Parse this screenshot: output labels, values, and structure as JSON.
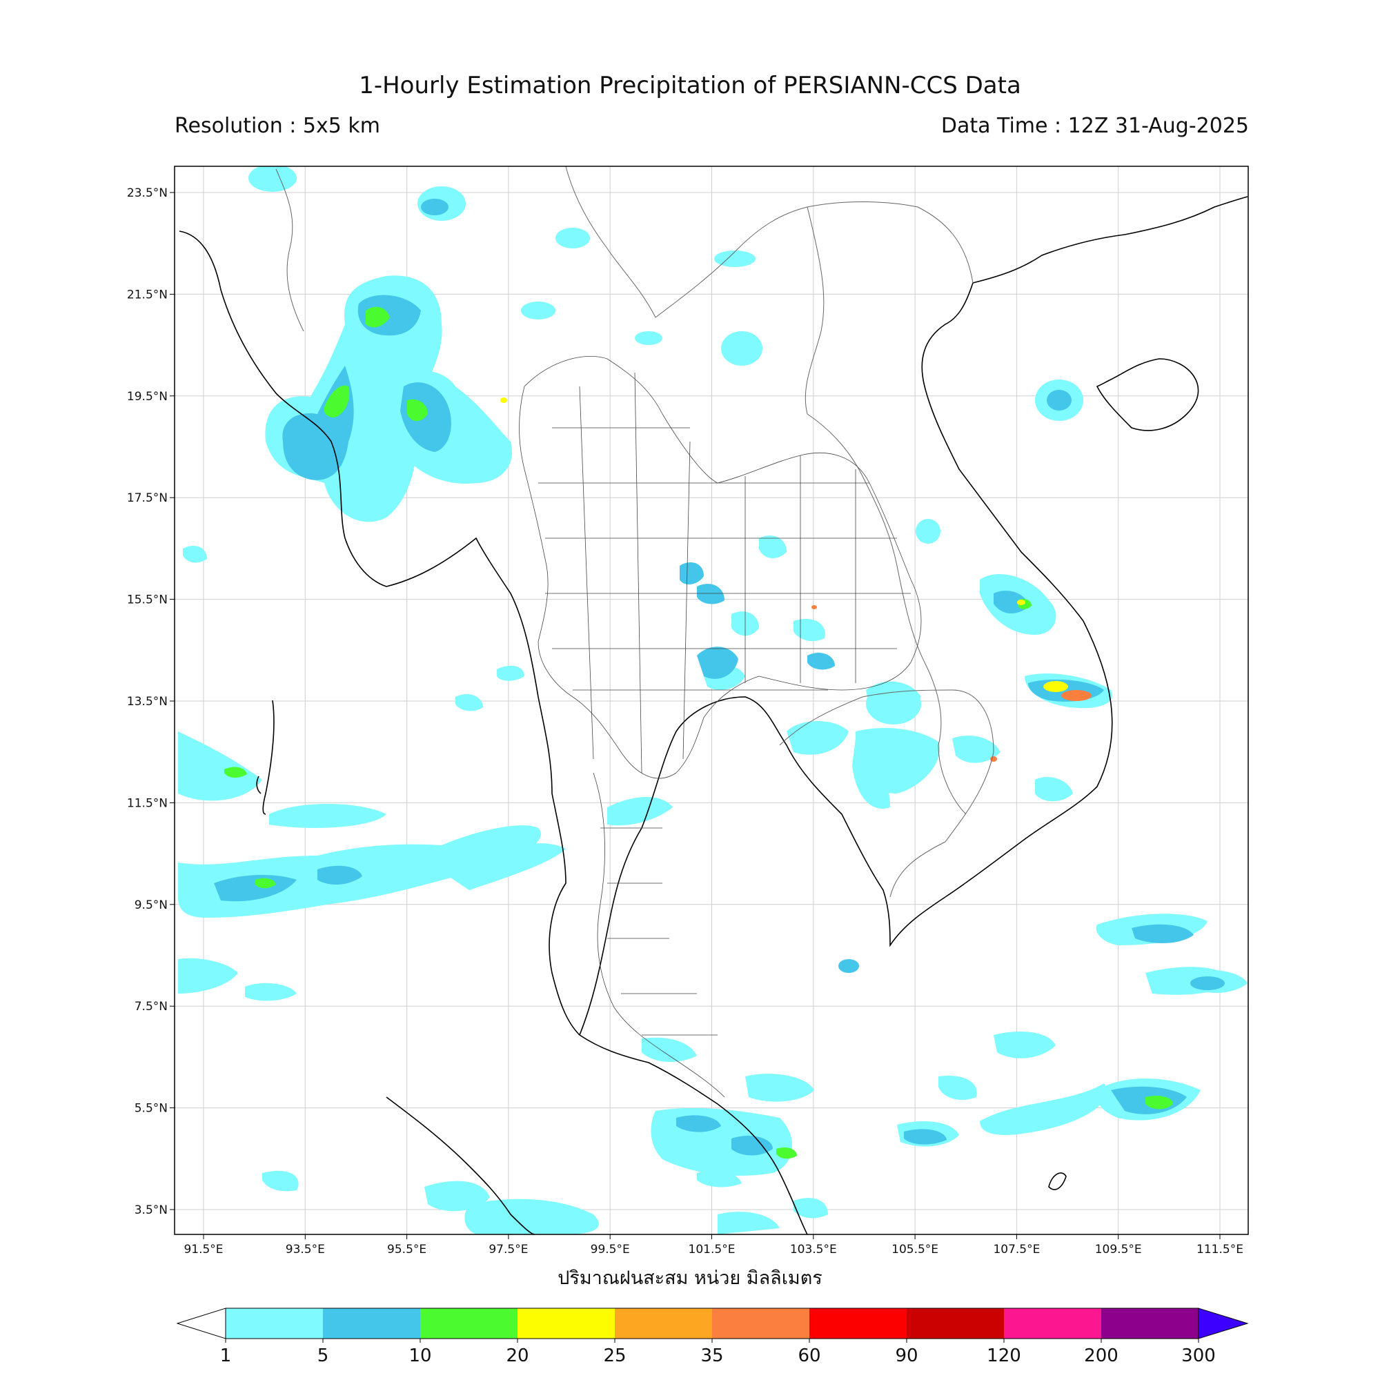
{
  "title": "1-Hourly Estimation Precipitation of PERSIANN-CCS Data",
  "resolution": "Resolution : 5x5 km",
  "data_time": "Data Time : 12Z 31-Aug-2025",
  "xlabel": "ปริมาณฝนสะสม หน่วย มิลลิเมตร",
  "lon_ticks": [
    "91.5°E",
    "93.5°E",
    "95.5°E",
    "97.5°E",
    "99.5°E",
    "101.5°E",
    "103.5°E",
    "105.5°E",
    "107.5°E",
    "109.5°E",
    "111.5°E"
  ],
  "lat_ticks": [
    "23.5°N",
    "21.5°N",
    "19.5°N",
    "17.5°N",
    "15.5°N",
    "13.5°N",
    "11.5°N",
    "9.5°N",
    "7.5°N",
    "5.5°N",
    "3.5°N"
  ],
  "colorbar": {
    "levels": [
      "1",
      "5",
      "10",
      "20",
      "25",
      "35",
      "60",
      "90",
      "120",
      "200",
      "300"
    ],
    "colors": [
      "#7ffaff",
      "#43c6ea",
      "#4bfb2f",
      "#fdfd00",
      "#fca622",
      "#fb7f3f",
      "#fc0000",
      "#cb0000",
      "#fc1791",
      "#8c008c"
    ],
    "under_color": "#ffffff",
    "over_color": "#3b00ff"
  },
  "legend_colors": {
    "light_rain": "#7ffaff",
    "moderate": "#43c6ea",
    "heavy": "#4bfb2f",
    "very_heavy": "#fdfd00"
  }
}
